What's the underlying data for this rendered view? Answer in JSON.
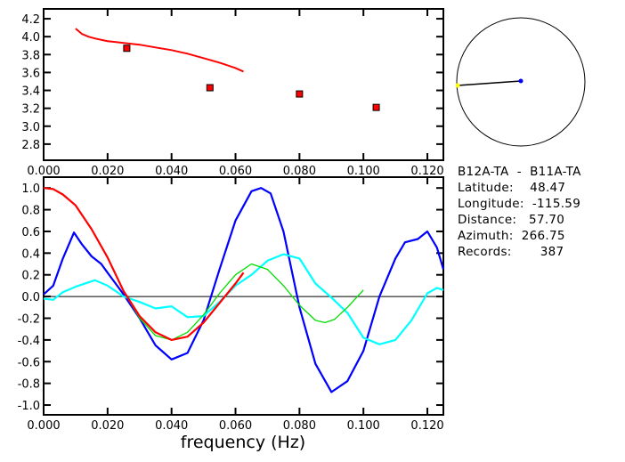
{
  "chart_data": [
    {
      "type": "scatter",
      "xlim": [
        0,
        0.125
      ],
      "ylim": [
        2.62,
        4.31
      ],
      "xticks": [
        "0.000",
        "0.020",
        "0.040",
        "0.060",
        "0.080",
        "0.100",
        "0.120"
      ],
      "yticks": [
        "2.8",
        "3.0",
        "3.2",
        "3.4",
        "3.6",
        "3.8",
        "4.0",
        "4.2"
      ],
      "points": {
        "color": "#ff0000",
        "x": [
          0.026,
          0.052,
          0.08,
          0.104
        ],
        "y": [
          3.87,
          3.43,
          3.36,
          3.21
        ]
      },
      "curve": {
        "color": "#ff0000",
        "x": [
          0.01,
          0.011,
          0.012,
          0.014,
          0.016,
          0.02,
          0.025,
          0.03,
          0.035,
          0.04,
          0.045,
          0.05,
          0.055,
          0.06,
          0.0625
        ],
        "y": [
          4.09,
          4.06,
          4.03,
          4.0,
          3.98,
          3.95,
          3.93,
          3.91,
          3.88,
          3.85,
          3.81,
          3.76,
          3.71,
          3.65,
          3.61
        ]
      }
    },
    {
      "type": "line",
      "xlabel": "frequency (Hz)",
      "xlim": [
        0,
        0.125
      ],
      "ylim": [
        -1.09,
        1.1
      ],
      "xticks": [
        "0.000",
        "0.020",
        "0.040",
        "0.060",
        "0.080",
        "0.100",
        "0.120"
      ],
      "yticks": [
        "-1.0",
        "-0.8",
        "-0.6",
        "-0.4",
        "-0.2",
        "0.0",
        "0.2",
        "0.4",
        "0.6",
        "0.8",
        "1.0"
      ],
      "series": [
        {
          "color": "#0000ff",
          "x": [
            0,
            0.003,
            0.006,
            0.0095,
            0.012,
            0.015,
            0.018,
            0.02,
            0.025,
            0.03,
            0.035,
            0.04,
            0.045,
            0.05,
            0.055,
            0.06,
            0.065,
            0.068,
            0.071,
            0.075,
            0.08,
            0.085,
            0.09,
            0.095,
            0.1,
            0.105,
            0.11,
            0.113,
            0.117,
            0.12,
            0.123,
            0.125
          ],
          "y": [
            0.02,
            0.1,
            0.35,
            0.59,
            0.48,
            0.37,
            0.3,
            0.22,
            0.02,
            -0.2,
            -0.45,
            -0.58,
            -0.52,
            -0.22,
            0.25,
            0.7,
            0.97,
            1.0,
            0.95,
            0.6,
            -0.1,
            -0.62,
            -0.88,
            -0.78,
            -0.5,
            0.0,
            0.35,
            0.5,
            0.53,
            0.6,
            0.45,
            0.25
          ]
        },
        {
          "color": "#00ffff",
          "x": [
            0,
            0.003,
            0.006,
            0.01,
            0.016,
            0.02,
            0.025,
            0.03,
            0.035,
            0.04,
            0.045,
            0.05,
            0.055,
            0.06,
            0.065,
            0.07,
            0.075,
            0.08,
            0.085,
            0.09,
            0.095,
            0.1,
            0.105,
            0.11,
            0.115,
            0.12,
            0.123,
            0.125
          ],
          "y": [
            -0.02,
            -0.03,
            0.04,
            0.09,
            0.15,
            0.1,
            0.0,
            -0.05,
            -0.11,
            -0.09,
            -0.19,
            -0.18,
            -0.05,
            0.1,
            0.2,
            0.33,
            0.39,
            0.35,
            0.12,
            -0.01,
            -0.15,
            -0.38,
            -0.44,
            -0.4,
            -0.22,
            0.03,
            0.08,
            0.06
          ]
        },
        {
          "color": "#00dd00",
          "x": [
            0,
            0.003,
            0.006,
            0.01,
            0.015,
            0.02,
            0.025,
            0.03,
            0.035,
            0.04,
            0.045,
            0.05,
            0.055,
            0.06,
            0.065,
            0.07,
            0.075,
            0.08,
            0.085,
            0.088,
            0.091,
            0.095,
            0.1
          ],
          "y": [
            1.0,
            0.99,
            0.94,
            0.84,
            0.62,
            0.36,
            0.05,
            -0.2,
            -0.36,
            -0.4,
            -0.33,
            -0.17,
            0.03,
            0.2,
            0.3,
            0.25,
            0.1,
            -0.08,
            -0.22,
            -0.24,
            -0.21,
            -0.1,
            0.06
          ]
        },
        {
          "color": "#ff0000",
          "x": [
            0,
            0.003,
            0.006,
            0.01,
            0.015,
            0.02,
            0.025,
            0.03,
            0.035,
            0.04,
            0.045,
            0.05,
            0.055,
            0.06,
            0.0625
          ],
          "y": [
            1.0,
            0.99,
            0.94,
            0.84,
            0.62,
            0.36,
            0.05,
            -0.18,
            -0.33,
            -0.4,
            -0.37,
            -0.24,
            -0.06,
            0.12,
            0.22
          ]
        }
      ]
    }
  ],
  "map": {
    "station_color": "#0000ff",
    "target_color": "#ffff00",
    "azimuth_deg": 266.75
  },
  "info": {
    "title": "B12A-TA  -  B11A-TA",
    "latitude": "Latitude:    48.47",
    "longitude": "Longitude:  -115.59",
    "distance": "Distance:   57.70",
    "azimuth": "Azimuth:  266.75",
    "records": "Records:       387"
  }
}
